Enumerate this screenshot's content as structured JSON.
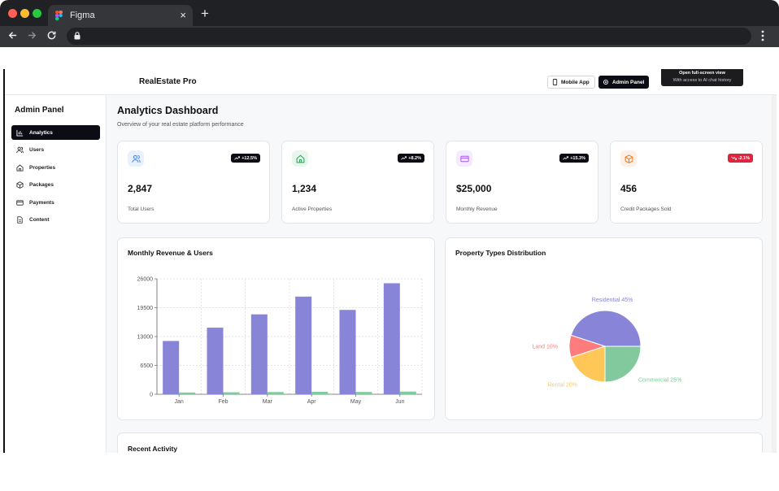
{
  "browser": {
    "tab_title": "Figma",
    "tab_close": "×",
    "new_tab": "+",
    "icons": [
      "back-icon",
      "forward-icon",
      "reload-icon",
      "lock-icon",
      "menu-dots-icon",
      "figma-logo"
    ],
    "traffic_light_colors": [
      "#ff5f57",
      "#febc2e",
      "#28c840"
    ]
  },
  "header": {
    "brand": "RealEstate Pro",
    "mobile_app_label": "Mobile App",
    "admin_panel_label": "Admin Panel",
    "tooltip_line1": "Open full-screen view",
    "tooltip_line2": "With access to AI chat history"
  },
  "sidebar": {
    "title": "Admin Panel",
    "items": [
      {
        "label": "Analytics",
        "icon": "bar-chart-icon",
        "active": true
      },
      {
        "label": "Users",
        "icon": "users-icon",
        "active": false
      },
      {
        "label": "Properties",
        "icon": "home-icon",
        "active": false
      },
      {
        "label": "Packages",
        "icon": "package-icon",
        "active": false
      },
      {
        "label": "Payments",
        "icon": "credit-card-icon",
        "active": false
      },
      {
        "label": "Content",
        "icon": "document-icon",
        "active": false
      }
    ]
  },
  "dashboard": {
    "title": "Analytics Dashboard",
    "subtitle": "Overview of your real estate platform performance",
    "stats": [
      {
        "value": "2,847",
        "label": "Total Users",
        "change": "+12.5%",
        "trend": "up",
        "icon": "users-icon",
        "icon_color": "#3b82f6",
        "icon_bg": "#eaf1fe",
        "badge_color": "#0c0c14"
      },
      {
        "value": "1,234",
        "label": "Active Properties",
        "change": "+8.2%",
        "trend": "up",
        "icon": "home-icon",
        "icon_color": "#22a652",
        "icon_bg": "#e8f7ee",
        "badge_color": "#0c0c14"
      },
      {
        "value": "$25,000",
        "label": "Monthly Revenue",
        "change": "+15.3%",
        "trend": "up",
        "icon": "credit-card-icon",
        "icon_color": "#a855f7",
        "icon_bg": "#f4ebfe",
        "badge_color": "#0c0c14"
      },
      {
        "value": "456",
        "label": "Credit Packages Sold",
        "change": "-2.1%",
        "trend": "down",
        "icon": "package-icon",
        "icon_color": "#f97316",
        "icon_bg": "#fef0e6",
        "badge_color": "#dc2640"
      }
    ],
    "recent_activity_title": "Recent Activity"
  },
  "chart_data": [
    {
      "type": "bar",
      "title": "Monthly Revenue & Users",
      "categories": [
        "Jan",
        "Feb",
        "Mar",
        "Apr",
        "May",
        "Jun"
      ],
      "series": [
        {
          "values": [
            12000,
            15000,
            18000,
            22000,
            19000,
            25000
          ],
          "color": "#8884d8"
        },
        {
          "values": [
            400,
            450,
            500,
            550,
            520,
            600
          ],
          "color": "#82ca9d"
        }
      ],
      "ylim": [
        0,
        26000
      ],
      "yticks": [
        "0",
        "6500",
        "13000",
        "19500",
        "26000"
      ],
      "grid": true
    },
    {
      "type": "pie",
      "title": "Property Types Distribution",
      "slices": [
        {
          "label": "Residential 45%",
          "value": 45,
          "color": "#8884d8"
        },
        {
          "label": "Land 10%",
          "value": 10,
          "color": "#ff7c7c"
        },
        {
          "label": "Rental 20%",
          "value": 20,
          "color": "#ffc658"
        },
        {
          "label": "Commercial 25%",
          "value": 25,
          "color": "#82ca9d"
        }
      ]
    }
  ]
}
